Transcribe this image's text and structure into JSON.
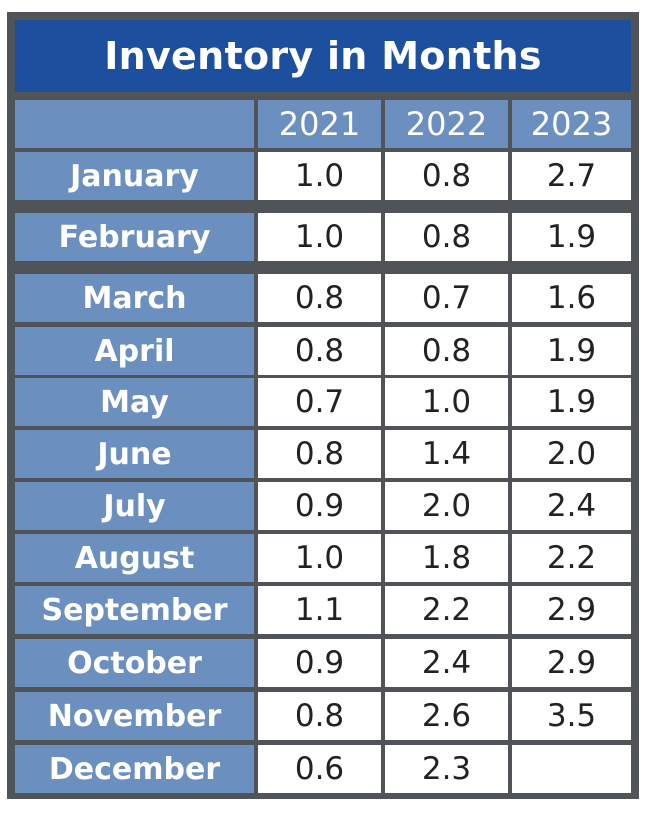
{
  "title": "Inventory in Months",
  "colors": {
    "frame": "#505358",
    "title_bg": "#1c4f9e",
    "label_bg": "#6b8fbf",
    "cell_bg": "#ffffff",
    "cell_text": "#222222",
    "label_text": "#ffffff"
  },
  "chart_data": {
    "type": "table",
    "title": "Inventory in Months",
    "columns": [
      "2021",
      "2022",
      "2023"
    ],
    "rows": [
      {
        "month": "January",
        "values": [
          "1.0",
          "0.8",
          "2.7"
        ]
      },
      {
        "month": "February",
        "values": [
          "1.0",
          "0.8",
          "1.9"
        ]
      },
      {
        "month": "March",
        "values": [
          "0.8",
          "0.7",
          "1.6"
        ]
      },
      {
        "month": "April",
        "values": [
          "0.8",
          "0.8",
          "1.9"
        ]
      },
      {
        "month": "May",
        "values": [
          "0.7",
          "1.0",
          "1.9"
        ]
      },
      {
        "month": "June",
        "values": [
          "0.8",
          "1.4",
          "2.0"
        ]
      },
      {
        "month": "July",
        "values": [
          "0.9",
          "2.0",
          "2.4"
        ]
      },
      {
        "month": "August",
        "values": [
          "1.0",
          "1.8",
          "2.2"
        ]
      },
      {
        "month": "September",
        "values": [
          "1.1",
          "2.2",
          "2.9"
        ]
      },
      {
        "month": "October",
        "values": [
          "0.9",
          "2.4",
          "2.9"
        ]
      },
      {
        "month": "November",
        "values": [
          "0.8",
          "2.6",
          "3.5"
        ]
      },
      {
        "month": "December",
        "values": [
          "0.6",
          "2.3",
          ""
        ]
      }
    ]
  }
}
